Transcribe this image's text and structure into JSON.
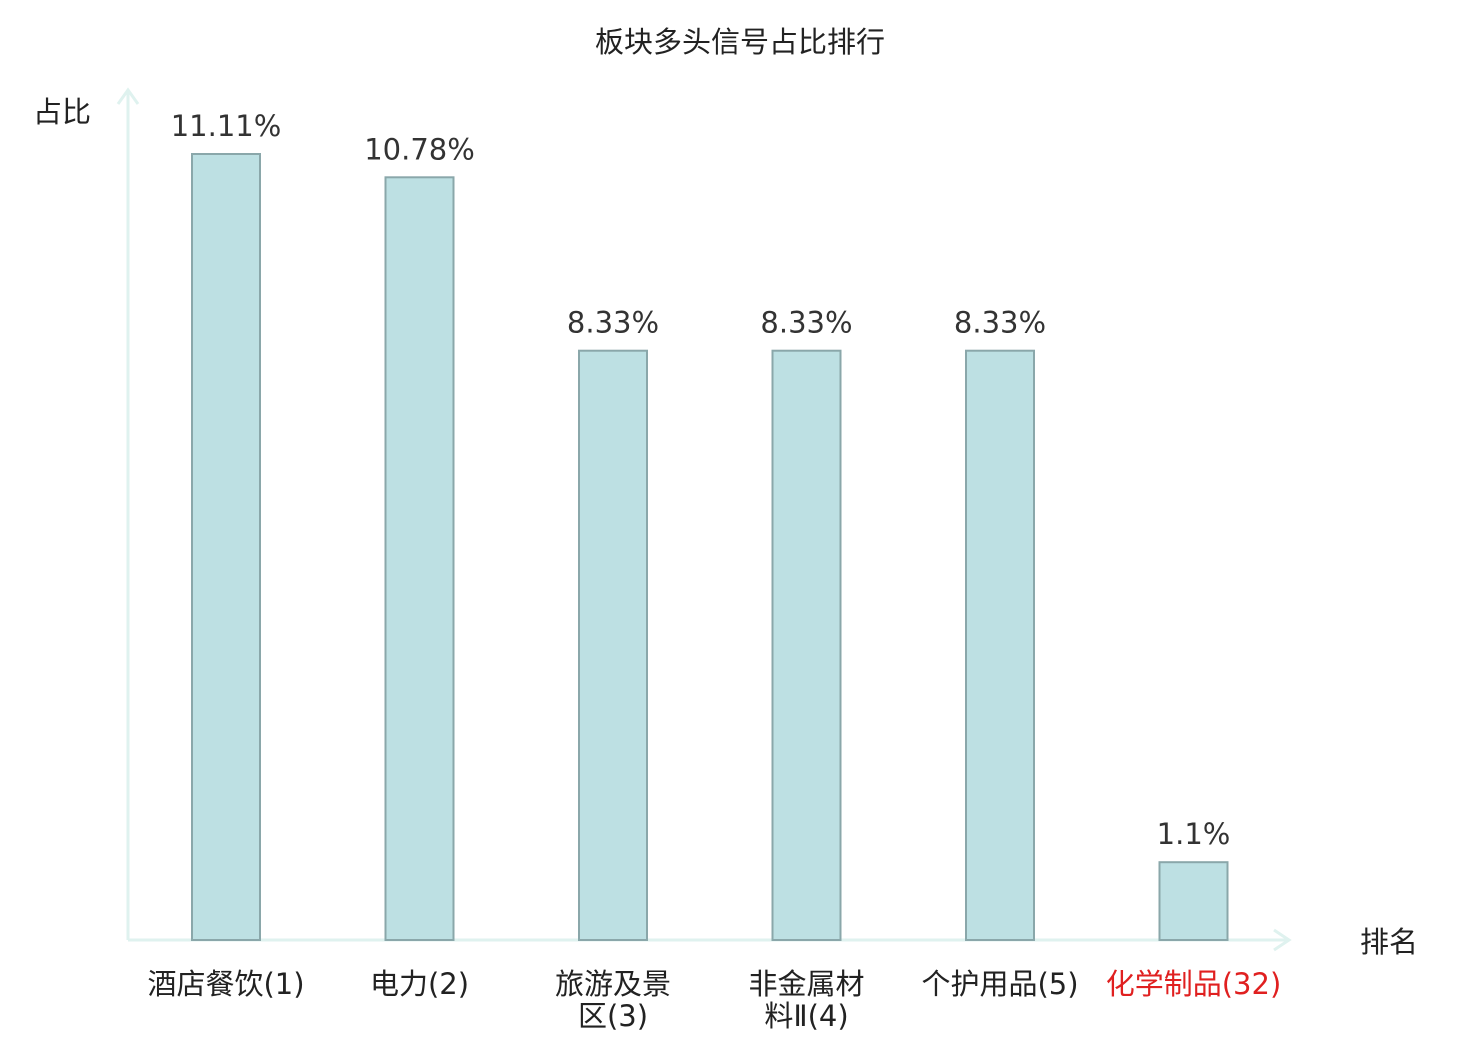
{
  "chart_data": {
    "type": "bar",
    "title": "板块多头信号占比排行",
    "ylabel": "占比",
    "xlabel": "排名",
    "categories": [
      [
        "酒店餐饮(1)"
      ],
      [
        "电力(2)"
      ],
      [
        "旅游及景",
        "区(3)"
      ],
      [
        "非金属材",
        "料Ⅱ(4)"
      ],
      [
        "个护用品(5)"
      ],
      [
        "化学制品(32)"
      ]
    ],
    "values": [
      11.11,
      10.78,
      8.33,
      8.33,
      8.33,
      1.1
    ],
    "value_labels": [
      "11.11%",
      "10.78%",
      "8.33%",
      "8.33%",
      "8.33%",
      "1.1%"
    ],
    "highlight_index": 5,
    "ylim": [
      0,
      11.11
    ],
    "grid": false,
    "colors": {
      "bar_fill": "#bde0e3",
      "bar_stroke": "#8aa7aa",
      "axis": "#dff2ef",
      "highlight_text": "#e02020",
      "text": "#222222"
    }
  }
}
